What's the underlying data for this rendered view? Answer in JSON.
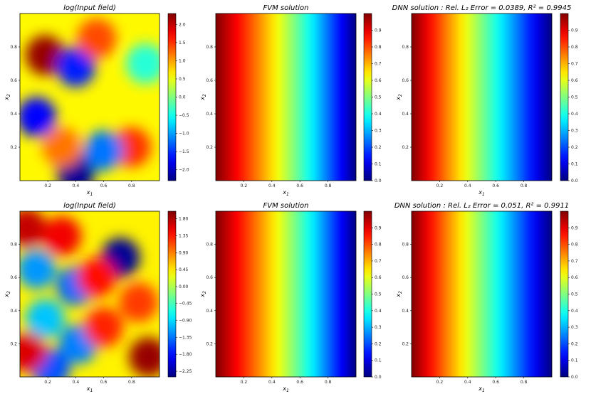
{
  "chart_data": [
    {
      "type": "heatmap",
      "title": "log(Input field)",
      "xlabel": "x",
      "xlabel_sub": "1",
      "ylabel": "x",
      "ylabel_sub": "2",
      "xlim": [
        0,
        1
      ],
      "ylim": [
        0,
        1
      ],
      "xticks": [
        "0.2",
        "0.4",
        "0.6",
        "0.8"
      ],
      "yticks": [
        "0.2",
        "0.4",
        "0.6",
        "0.8"
      ],
      "colormap": "jet",
      "colorbar_range": [
        -2.3,
        2.3
      ],
      "colorbar_ticks": [
        "2.0",
        "1.5",
        "1.0",
        "0.5",
        "0.0",
        "−0.5",
        "−1.0",
        "−1.5",
        "−2.0"
      ],
      "colorbar_values": [
        2.0,
        1.5,
        1.0,
        0.5,
        0.0,
        -0.5,
        -1.0,
        -1.5,
        -2.0
      ],
      "features": [
        {
          "x": 0.18,
          "y": 0.75,
          "value": 2.2
        },
        {
          "x": 0.4,
          "y": 0.68,
          "value": -1.6
        },
        {
          "x": 0.12,
          "y": 0.38,
          "value": -1.7
        },
        {
          "x": 0.4,
          "y": 0.05,
          "value": -2.2
        },
        {
          "x": 0.55,
          "y": 0.85,
          "value": 1.4
        },
        {
          "x": 0.8,
          "y": 0.2,
          "value": 1.5
        },
        {
          "x": 0.6,
          "y": 0.18,
          "value": -1.2
        },
        {
          "x": 0.9,
          "y": 0.7,
          "value": -0.4
        },
        {
          "x": 0.3,
          "y": 0.2,
          "value": 1.2
        }
      ]
    },
    {
      "type": "heatmap",
      "title": "FVM solution",
      "xlabel": "x",
      "xlabel_sub": "1",
      "ylabel": "x",
      "ylabel_sub": "2",
      "xlim": [
        0,
        1
      ],
      "ylim": [
        0,
        1
      ],
      "xticks": [
        "0.2",
        "0.4",
        "0.6",
        "0.8"
      ],
      "yticks": [
        "0.2",
        "0.4",
        "0.6",
        "0.8"
      ],
      "colormap": "jet",
      "colorbar_range": [
        0,
        1
      ],
      "colorbar_ticks": [
        "0.9",
        "0.8",
        "0.7",
        "0.6",
        "0.5",
        "0.4",
        "0.3",
        "0.2",
        "0.1",
        "0.0"
      ],
      "colorbar_values": [
        0.9,
        0.8,
        0.7,
        0.6,
        0.5,
        0.4,
        0.3,
        0.2,
        0.1,
        0.0
      ]
    },
    {
      "type": "heatmap",
      "title": "DNN solution :  Rel. L₂ Error = 0.0389, R² = 0.9945",
      "xlabel": "x",
      "xlabel_sub": "1",
      "ylabel": "x",
      "ylabel_sub": "2",
      "xlim": [
        0,
        1
      ],
      "ylim": [
        0,
        1
      ],
      "xticks": [
        "0.2",
        "0.4",
        "0.6",
        "0.8"
      ],
      "yticks": [
        "0.2",
        "0.4",
        "0.6",
        "0.8"
      ],
      "colormap": "jet",
      "colorbar_range": [
        0,
        1
      ],
      "colorbar_ticks": [
        "0.9",
        "0.8",
        "0.7",
        "0.6",
        "0.5",
        "0.4",
        "0.3",
        "0.2",
        "0.1",
        "0.0"
      ],
      "colorbar_values": [
        0.9,
        0.8,
        0.7,
        0.6,
        0.5,
        0.4,
        0.3,
        0.2,
        0.1,
        0.0
      ],
      "rel_l2_error": 0.0389,
      "r2": 0.9945
    },
    {
      "type": "heatmap",
      "title": "log(Input field)",
      "xlabel": "x",
      "xlabel_sub": "1",
      "ylabel": "x",
      "ylabel_sub": "2",
      "xlim": [
        0,
        1
      ],
      "ylim": [
        0,
        1
      ],
      "xticks": [
        "0.2",
        "0.4",
        "0.6",
        "0.8"
      ],
      "yticks": [
        "0.2",
        "0.4",
        "0.6",
        "0.8"
      ],
      "colormap": "jet",
      "colorbar_range": [
        -2.4,
        2.0
      ],
      "colorbar_ticks": [
        "1.80",
        "1.35",
        "0.90",
        "0.45",
        "0.00",
        "−0.45",
        "−0.90",
        "−1.35",
        "−1.80",
        "−2.25"
      ],
      "colorbar_values": [
        1.8,
        1.35,
        0.9,
        0.45,
        0.0,
        -0.45,
        -0.9,
        -1.35,
        -1.8,
        -2.25
      ],
      "features": [
        {
          "x": 0.72,
          "y": 0.72,
          "value": -2.3
        },
        {
          "x": 0.12,
          "y": 0.65,
          "value": -1.2
        },
        {
          "x": 0.4,
          "y": 0.55,
          "value": -1.4
        },
        {
          "x": 0.18,
          "y": 0.35,
          "value": -1.0
        },
        {
          "x": 0.42,
          "y": 0.2,
          "value": -1.3
        },
        {
          "x": 0.22,
          "y": 0.05,
          "value": -1.5
        },
        {
          "x": 0.92,
          "y": 0.12,
          "value": 1.9
        },
        {
          "x": 0.05,
          "y": 0.9,
          "value": 1.7
        },
        {
          "x": 0.3,
          "y": 0.85,
          "value": 1.5
        },
        {
          "x": 0.6,
          "y": 0.3,
          "value": 1.3
        },
        {
          "x": 0.05,
          "y": 0.15,
          "value": 1.6
        },
        {
          "x": 0.85,
          "y": 0.45,
          "value": 1.2
        },
        {
          "x": 0.55,
          "y": 0.6,
          "value": 1.4
        }
      ]
    },
    {
      "type": "heatmap",
      "title": "FVM solution",
      "xlabel": "x",
      "xlabel_sub": "1",
      "ylabel": "x",
      "ylabel_sub": "2",
      "xlim": [
        0,
        1
      ],
      "ylim": [
        0,
        1
      ],
      "xticks": [
        "0.2",
        "0.4",
        "0.6",
        "0.8"
      ],
      "yticks": [
        "0.2",
        "0.4",
        "0.6",
        "0.8"
      ],
      "colormap": "jet",
      "colorbar_range": [
        0,
        1
      ],
      "colorbar_ticks": [
        "0.9",
        "0.8",
        "0.7",
        "0.6",
        "0.5",
        "0.4",
        "0.3",
        "0.2",
        "0.1",
        "0.0"
      ],
      "colorbar_values": [
        0.9,
        0.8,
        0.7,
        0.6,
        0.5,
        0.4,
        0.3,
        0.2,
        0.1,
        0.0
      ]
    },
    {
      "type": "heatmap",
      "title": "DNN solution :  Rel. L₂ Error = 0.051, R² = 0.9911",
      "xlabel": "x",
      "xlabel_sub": "1",
      "ylabel": "x",
      "ylabel_sub": "2",
      "xlim": [
        0,
        1
      ],
      "ylim": [
        0,
        1
      ],
      "xticks": [
        "0.2",
        "0.4",
        "0.6",
        "0.8"
      ],
      "yticks": [
        "0.2",
        "0.4",
        "0.6",
        "0.8"
      ],
      "colormap": "jet",
      "colorbar_range": [
        0,
        1
      ],
      "colorbar_ticks": [
        "0.9",
        "0.8",
        "0.7",
        "0.6",
        "0.5",
        "0.4",
        "0.3",
        "0.2",
        "0.1",
        "0.0"
      ],
      "colorbar_values": [
        0.9,
        0.8,
        0.7,
        0.6,
        0.5,
        0.4,
        0.3,
        0.2,
        0.1,
        0.0
      ],
      "rel_l2_error": 0.051,
      "r2": 0.9911
    }
  ]
}
